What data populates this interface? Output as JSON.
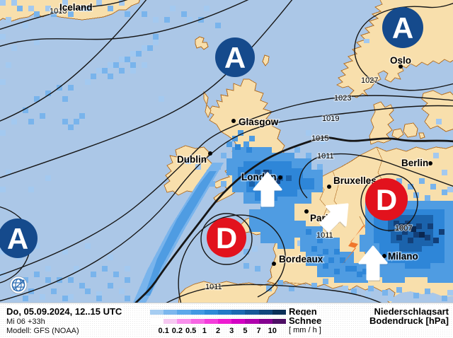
{
  "map": {
    "high_letter": "A",
    "low_letter": "D",
    "cities": [
      {
        "label": "Iceland"
      },
      {
        "label": "Oslo"
      },
      {
        "label": "Glasgow"
      },
      {
        "label": "Dublin"
      },
      {
        "label": "London"
      },
      {
        "label": "Bruxelles"
      },
      {
        "label": "Berlin"
      },
      {
        "label": "Paris"
      },
      {
        "label": "Bordeaux"
      },
      {
        "label": "Milano"
      }
    ],
    "isobar_labels": [
      "1013",
      "1027",
      "1023",
      "1019",
      "1015",
      "1011",
      "1011",
      "1011",
      "1007"
    ]
  },
  "legend": {
    "datetime": "Do, 05.09.2024, 12..15 UTC",
    "run": "Mi 06 +33h",
    "model": "Modell: GFS (NOAA)",
    "rain_label": "Regen",
    "snow_label": "Schnee",
    "unit_label": "[ mm / h ]",
    "type_label": "Niederschlagsart",
    "pressure_label": "Bodendruck [hPa]",
    "scale_values": [
      "0.1",
      "0.2",
      "0.5",
      "1",
      "2",
      "3",
      "5",
      "7",
      "10"
    ],
    "rain_colors": [
      "#a6cdf2",
      "#7cb7ee",
      "#5ca8ea",
      "#4198e2",
      "#2e89d7",
      "#2379c6",
      "#1c69b2",
      "#165898",
      "#11477d",
      "#0b3058"
    ],
    "snow_colors": [
      "#ffffff",
      "#f6c9f1",
      "#f990ec",
      "#f767e4",
      "#f43cdb",
      "#ee1bd1",
      "#d400c3",
      "#b000ad",
      "#84008f",
      "#4e0f65"
    ]
  },
  "colors": {
    "sea": "#abc7e7",
    "land": "#f8dfac",
    "high": "#154a8c",
    "low": "#e2121d",
    "lightning": "#f0772c",
    "arrow": "#ffffff"
  }
}
